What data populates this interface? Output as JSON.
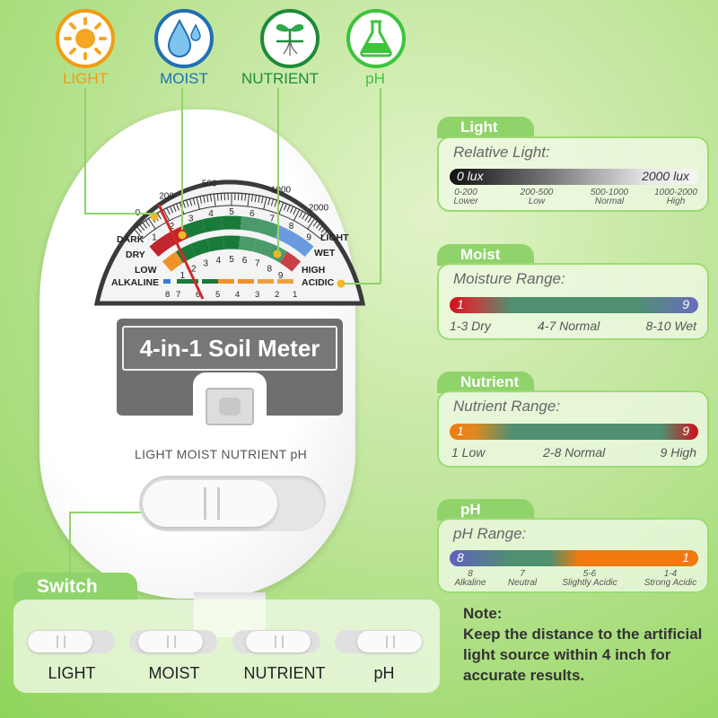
{
  "top_icons": [
    {
      "label": "LIGHT",
      "icon": "sun-icon",
      "color": "#f39c12"
    },
    {
      "label": "MOIST",
      "icon": "water-drop-icon",
      "color": "#1f6fb5"
    },
    {
      "label": "NUTRIENT",
      "icon": "sprout-icon",
      "color": "#1e8a3a"
    },
    {
      "label": "pH",
      "icon": "flask-icon",
      "color": "#3cc43c"
    }
  ],
  "meter": {
    "title": "4-in-1 Soil Meter",
    "modes_label": "LIGHT MOIST NUTRIENT pH",
    "dial": {
      "lux_ticks": [
        "0",
        "200",
        "500",
        "1000",
        "2000"
      ],
      "scale_numbers": [
        "1",
        "2",
        "3",
        "4",
        "5",
        "6",
        "7",
        "8",
        "9"
      ],
      "row1_left": "DARK",
      "row1_right": "LIGHT",
      "row2_left": "DRY",
      "row2_right": "WET",
      "row3_left": "LOW",
      "row3_right": "HIGH",
      "row4_left": "ALKALINE",
      "row4_right": "ACIDIC",
      "ph_numbers": [
        "8",
        "7",
        "6",
        "5",
        "4",
        "3",
        "2",
        "1"
      ]
    }
  },
  "switch_panel": {
    "title": "Switch",
    "positions": [
      "LIGHT",
      "MOIST",
      "NUTRIENT",
      "pH"
    ]
  },
  "panels": {
    "light": {
      "tab": "Light",
      "title": "Relative Light:",
      "bar_left": "0 lux",
      "bar_right": "2000 lux",
      "ranges": [
        {
          "range": "0-200",
          "label": "Lower"
        },
        {
          "range": "200-500",
          "label": "Low"
        },
        {
          "range": "500-1000",
          "label": "Normal"
        },
        {
          "range": "1000-2000",
          "label": "High"
        }
      ]
    },
    "moist": {
      "tab": "Moist",
      "title": "Moisture Range:",
      "bar_left": "1",
      "bar_right": "9",
      "captions": [
        "1-3 Dry",
        "4-7 Normal",
        "8-10 Wet"
      ]
    },
    "nutrient": {
      "tab": "Nutrient",
      "title": "Nutrient Range:",
      "bar_left": "1",
      "bar_right": "9",
      "captions": [
        "1 Low",
        "2-8 Normal",
        "9 High"
      ]
    },
    "ph": {
      "tab": "pH",
      "title": "pH Range:",
      "bar_left": "8",
      "bar_right": "1",
      "ranges": [
        {
          "range": "8",
          "label": "Alkaline"
        },
        {
          "range": "7",
          "label": "Neutral"
        },
        {
          "range": "5-6",
          "label": "Slightly Acidic"
        },
        {
          "range": "1-4",
          "label": "Strong Acidic"
        }
      ]
    }
  },
  "note": {
    "title": "Note:",
    "text": "Keep the distance to the artificial light source within 4 inch for accurate results."
  }
}
